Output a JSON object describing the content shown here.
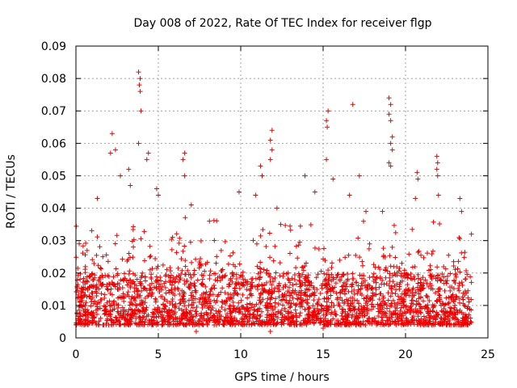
{
  "chart_data": {
    "type": "scatter",
    "title": "Day 008 of 2022, Rate Of TEC Index for receiver flgp",
    "xlabel": "GPS time / hours",
    "ylabel": "ROTI / TECUs",
    "xlim": [
      0,
      25
    ],
    "ylim": [
      0,
      0.09
    ],
    "xticks": [
      "0",
      "5",
      "10",
      "15",
      "20",
      "25"
    ],
    "yticks": [
      "0",
      "0.01",
      "0.02",
      "0.03",
      "0.04",
      "0.05",
      "0.06",
      "0.07",
      "0.08",
      "0.09"
    ],
    "grid": true,
    "marker": "+",
    "color": "#ee0000",
    "series": [
      {
        "name": "ROTI",
        "description": "Dense cloud of samples over 0-24 h, mostly between 0.005 and 0.02 TECU/s, with spikes",
        "base_range": [
          0.004,
          0.02
        ],
        "points": [
          [
            3.8,
            0.082
          ],
          [
            3.9,
            0.08
          ],
          [
            3.85,
            0.078
          ],
          [
            3.9,
            0.076
          ],
          [
            3.95,
            0.07
          ],
          [
            3.8,
            0.06
          ],
          [
            4.4,
            0.057
          ],
          [
            4.3,
            0.055
          ],
          [
            2.2,
            0.063
          ],
          [
            2.4,
            0.058
          ],
          [
            2.1,
            0.057
          ],
          [
            6.6,
            0.057
          ],
          [
            6.5,
            0.055
          ],
          [
            6.6,
            0.05
          ],
          [
            11.9,
            0.064
          ],
          [
            11.8,
            0.061
          ],
          [
            11.9,
            0.058
          ],
          [
            11.8,
            0.055
          ],
          [
            11.2,
            0.053
          ],
          [
            11.3,
            0.05
          ],
          [
            15.3,
            0.07
          ],
          [
            15.2,
            0.067
          ],
          [
            15.25,
            0.065
          ],
          [
            15.2,
            0.055
          ],
          [
            16.8,
            0.072
          ],
          [
            19.0,
            0.074
          ],
          [
            19.1,
            0.072
          ],
          [
            19.0,
            0.069
          ],
          [
            19.1,
            0.067
          ],
          [
            19.2,
            0.062
          ],
          [
            19.1,
            0.06
          ],
          [
            19.2,
            0.058
          ],
          [
            19.0,
            0.054
          ],
          [
            19.1,
            0.053
          ],
          [
            20.7,
            0.051
          ],
          [
            20.75,
            0.049
          ],
          [
            21.9,
            0.056
          ],
          [
            21.95,
            0.054
          ],
          [
            21.9,
            0.052
          ],
          [
            21.95,
            0.05
          ],
          [
            17.2,
            0.05
          ],
          [
            13.9,
            0.05
          ],
          [
            15.6,
            0.049
          ],
          [
            3.2,
            0.052
          ],
          [
            3.3,
            0.047
          ],
          [
            2.7,
            0.05
          ],
          [
            1.3,
            0.043
          ],
          [
            4.9,
            0.046
          ],
          [
            5.0,
            0.044
          ],
          [
            7.0,
            0.041
          ],
          [
            9.9,
            0.045
          ],
          [
            10.9,
            0.044
          ],
          [
            14.5,
            0.045
          ],
          [
            16.6,
            0.044
          ],
          [
            18.6,
            0.039
          ],
          [
            20.6,
            0.043
          ],
          [
            23.3,
            0.043
          ],
          [
            23.4,
            0.039
          ],
          [
            8.1,
            0.036
          ],
          [
            12.2,
            0.04
          ],
          [
            17.6,
            0.039
          ],
          [
            22.0,
            0.044
          ],
          [
            24.0,
            0.032
          ],
          [
            0.2,
            0.029
          ],
          [
            7.3,
            0.002
          ],
          [
            11.8,
            0.002
          ],
          [
            15.0,
            0.003
          ],
          [
            9.0,
            0.004
          ]
        ]
      }
    ]
  }
}
